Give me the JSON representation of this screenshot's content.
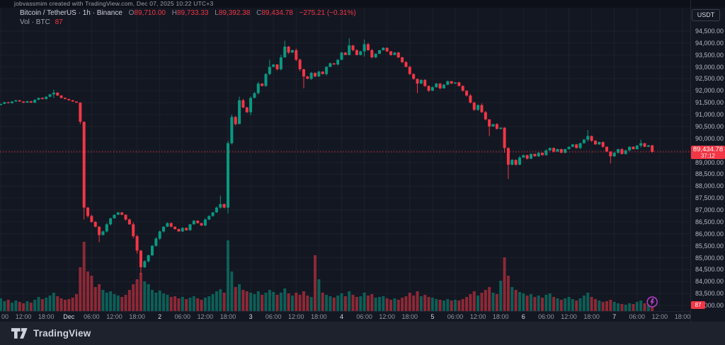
{
  "attribution": "jobvassmim created with TradingView.com, Dec 07, 2025 10:22 UTC+3",
  "toolbar": {
    "currency_button": "USDT"
  },
  "legend": {
    "symbol_line": "Bitcoin / TetherUS · 1h · Binance",
    "o_label": "O",
    "o_value": "89,710.00",
    "h_label": "H",
    "h_value": "89,733.33",
    "l_label": "L",
    "l_value": "89,392.38",
    "c_label": "C",
    "c_value": "89,434.78",
    "change": "−275.21 (−0.31%)",
    "vol_label": "Vol · BTC",
    "vol_value": "87"
  },
  "price_axis": {
    "labels": [
      "94,500.00",
      "94,000.00",
      "93,500.00",
      "93,000.00",
      "92,500.00",
      "92,000.00",
      "91,500.00",
      "91,000.00",
      "90,500.00",
      "90,000.00",
      "89,500.00",
      "89,000.00",
      "88,500.00",
      "88,000.00",
      "87,500.00",
      "87,000.00",
      "86,500.00",
      "86,000.00",
      "85,500.00",
      "85,000.00",
      "84,500.00",
      "84,000.00",
      "83,500.00",
      "83,000.00"
    ],
    "max": 94500,
    "min": 83000,
    "step": 500
  },
  "price_label": {
    "price": "89,434.78",
    "countdown": "37:12",
    "value": 89434.78
  },
  "volume_axis_label": "87",
  "time_axis": {
    "labels": [
      {
        "t": "00",
        "major": false
      },
      {
        "t": "12:00",
        "major": false
      },
      {
        "t": "18:00",
        "major": false
      },
      {
        "t": "Dec",
        "major": true
      },
      {
        "t": "06:00",
        "major": false
      },
      {
        "t": "12:00",
        "major": false
      },
      {
        "t": "18:00",
        "major": false
      },
      {
        "t": "2",
        "major": true
      },
      {
        "t": "06:00",
        "major": false
      },
      {
        "t": "12:00",
        "major": false
      },
      {
        "t": "18:00",
        "major": false
      },
      {
        "t": "3",
        "major": true
      },
      {
        "t": "06:00",
        "major": false
      },
      {
        "t": "12:00",
        "major": false
      },
      {
        "t": "18:00",
        "major": false
      },
      {
        "t": "4",
        "major": true
      },
      {
        "t": "06:00",
        "major": false
      },
      {
        "t": "12:00",
        "major": false
      },
      {
        "t": "18:00",
        "major": false
      },
      {
        "t": "5",
        "major": true
      },
      {
        "t": "06:00",
        "major": false
      },
      {
        "t": "12:00",
        "major": false
      },
      {
        "t": "18:00",
        "major": false
      },
      {
        "t": "6",
        "major": true
      },
      {
        "t": "06:00",
        "major": false
      },
      {
        "t": "12:00",
        "major": false
      },
      {
        "t": "18:00",
        "major": false
      },
      {
        "t": "7",
        "major": true
      },
      {
        "t": "06:00",
        "major": false
      },
      {
        "t": "12:00",
        "major": false
      },
      {
        "t": "18:00",
        "major": false
      }
    ]
  },
  "footer": {
    "brand": "TradingView"
  },
  "badge": {
    "icon": "lightning",
    "candle_index": 172
  },
  "colors": {
    "background": "#131722",
    "panel": "#1e222d",
    "up": "#089981",
    "down": "#f23645",
    "grid": "rgba(134,141,155,0.08)",
    "axis_text": "#b4b9c4",
    "label_bg": "#f23645",
    "badge": "#b73dc8"
  },
  "chart_data": {
    "type": "candlestick+volume",
    "symbol": "Bitcoin / TetherUS (BTC/USDT)",
    "exchange": "Binance",
    "interval": "1h",
    "time_range": "Nov 30 06:00 — Dec 7 10:00 (UTC+3), hourly candles",
    "price_range_shown": [
      83000,
      94500
    ],
    "current": {
      "open": 89710.0,
      "high": 89733.33,
      "low": 89392.38,
      "close": 89434.78,
      "change": -275.21,
      "change_pct": -0.31,
      "volume_btc": 87
    },
    "first_open": 91400,
    "closes": [
      91450,
      91520,
      91480,
      91550,
      91600,
      91550,
      91500,
      91560,
      91500,
      91620,
      91700,
      91650,
      91750,
      91850,
      91920,
      91800,
      91700,
      91650,
      91600,
      91550,
      91500,
      90700,
      87100,
      86750,
      86500,
      86300,
      85950,
      86100,
      86400,
      86650,
      86800,
      86900,
      86800,
      86600,
      86400,
      85900,
      85300,
      84600,
      84850,
      85100,
      85500,
      85800,
      86100,
      86300,
      86450,
      86300,
      86200,
      86100,
      86250,
      86150,
      86400,
      86550,
      86450,
      86350,
      86600,
      86750,
      86900,
      87100,
      87250,
      87100,
      89800,
      90900,
      90600,
      91600,
      91300,
      91100,
      91700,
      91900,
      92300,
      92200,
      92700,
      93000,
      93100,
      92900,
      93400,
      93850,
      93600,
      93700,
      93300,
      92900,
      92600,
      92500,
      92750,
      92600,
      92800,
      92700,
      93000,
      93150,
      93100,
      93300,
      93600,
      93500,
      93900,
      93700,
      93500,
      93650,
      93950,
      93700,
      93400,
      93550,
      93700,
      93800,
      93650,
      93500,
      93600,
      93400,
      93200,
      93000,
      92700,
      92500,
      92300,
      92450,
      92200,
      92000,
      92150,
      92300,
      92100,
      92250,
      92400,
      92300,
      92350,
      92200,
      92000,
      91800,
      91500,
      91200,
      91400,
      91100,
      90800,
      90500,
      90600,
      90400,
      90450,
      89600,
      88900,
      89100,
      88900,
      89200,
      89300,
      89150,
      89350,
      89250,
      89400,
      89300,
      89500,
      89600,
      89450,
      89550,
      89400,
      89550,
      89650,
      89750,
      89600,
      89800,
      89950,
      90100,
      89900,
      89750,
      89850,
      89650,
      89450,
      89250,
      89400,
      89550,
      89350,
      89500,
      89650,
      89550,
      89700,
      89800,
      89650,
      89710,
      89434.78
    ],
    "volumes_rel": [
      180,
      140,
      160,
      120,
      150,
      130,
      110,
      140,
      120,
      160,
      200,
      170,
      190,
      220,
      260,
      210,
      180,
      160,
      170,
      190,
      240,
      620,
      980,
      560,
      500,
      340,
      380,
      300,
      260,
      280,
      240,
      220,
      200,
      230,
      300,
      380,
      450,
      540,
      420,
      380,
      300,
      260,
      290,
      250,
      230,
      200,
      210,
      180,
      200,
      170,
      190,
      210,
      180,
      160,
      190,
      210,
      240,
      280,
      310,
      260,
      1000,
      560,
      340,
      380,
      300,
      280,
      260,
      240,
      280,
      230,
      260,
      300,
      270,
      230,
      260,
      320,
      250,
      220,
      260,
      230,
      280,
      220,
      200,
      790,
      450,
      260,
      230,
      210,
      190,
      220,
      250,
      210,
      280,
      230,
      200,
      210,
      260,
      220,
      240,
      190,
      200,
      210,
      180,
      160,
      180,
      160,
      190,
      210,
      260,
      220,
      280,
      210,
      230,
      200,
      190,
      170,
      160,
      150,
      170,
      150,
      160,
      150,
      170,
      200,
      240,
      280,
      220,
      260,
      300,
      340,
      260,
      240,
      430,
      760,
      500,
      340,
      300,
      270,
      250,
      220,
      240,
      200,
      220,
      190,
      230,
      250,
      200,
      180,
      160,
      180,
      200,
      170,
      150,
      180,
      220,
      260,
      200,
      170,
      150,
      130,
      140,
      160,
      130,
      110,
      100,
      90,
      110,
      100,
      130,
      150,
      110,
      90,
      60
    ],
    "wick_overrides": {
      "14": [
        92050,
        91700
      ],
      "21": [
        91520,
        90600
      ],
      "22": [
        90700,
        86600
      ],
      "26": [
        86320,
        85650
      ],
      "37": [
        85320,
        84300
      ],
      "58": [
        87600,
        87050
      ],
      "60": [
        89900,
        86850
      ],
      "61": [
        91000,
        89750
      ],
      "63": [
        91750,
        91250
      ],
      "71": [
        93300,
        92650
      ],
      "75": [
        94100,
        93380
      ],
      "80": [
        92920,
        92100
      ],
      "92": [
        94200,
        93480
      ],
      "96": [
        94150,
        93430
      ],
      "110": [
        92500,
        91900
      ],
      "129": [
        90800,
        90100
      ],
      "133": [
        90470,
        89400
      ],
      "134": [
        89620,
        88300
      ],
      "155": [
        90350,
        89870
      ],
      "161": [
        89450,
        88950
      ],
      "169": [
        89950,
        89620
      ],
      "172": [
        89733.33,
        89392.38
      ]
    },
    "current_price_line": 89434.78
  }
}
